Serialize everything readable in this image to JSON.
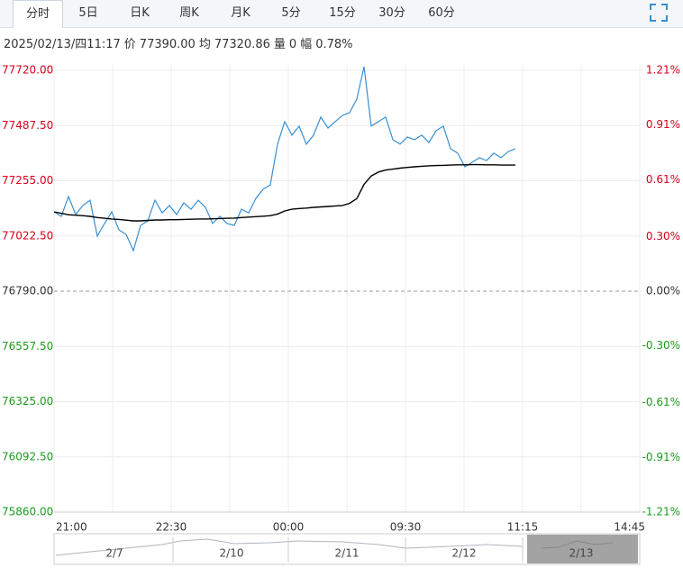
{
  "tabs": [
    "分时",
    "5日",
    "日K",
    "周K",
    "月K",
    "5分",
    "15分",
    "30分",
    "60分"
  ],
  "selected_tab": 0,
  "info": {
    "datetime": "2025/02/13/四11:17",
    "fields": [
      {
        "label": "价",
        "value": "77390.00"
      },
      {
        "label": "均",
        "value": "77320.86"
      },
      {
        "label": "量",
        "value": "0"
      },
      {
        "label": "幅",
        "value": "0.78%"
      }
    ]
  },
  "chart_data": {
    "type": "line",
    "series": [
      {
        "color": "#3a8fd1",
        "values": [
          77124,
          77105,
          77189,
          77113,
          77151,
          77173,
          77022,
          77075,
          77124,
          77048,
          77029,
          76961,
          77067,
          77086,
          77173,
          77120,
          77151,
          77113,
          77162,
          77135,
          77173,
          77143,
          77075,
          77105,
          77075,
          77067,
          77135,
          77120,
          77181,
          77219,
          77238,
          77409,
          77504,
          77447,
          77485,
          77409,
          77447,
          77523,
          77477,
          77504,
          77530,
          77542,
          77599,
          77735,
          77485,
          77504,
          77523,
          77428,
          77409,
          77439,
          77428,
          77447,
          77416,
          77466,
          77485,
          77390,
          77371,
          77314,
          77333,
          77352,
          77340,
          77371,
          77352,
          77378,
          77390
        ]
      },
      {
        "color": "#000000",
        "values": [
          77124,
          77118,
          77112,
          77110,
          77108,
          77105,
          77100,
          77097,
          77094,
          77092,
          77089,
          77086,
          77086,
          77088,
          77090,
          77090,
          77091,
          77091,
          77092,
          77093,
          77094,
          77094,
          77095,
          77096,
          77097,
          77098,
          77100,
          77102,
          77104,
          77106,
          77108,
          77115,
          77128,
          77135,
          77138,
          77140,
          77143,
          77145,
          77147,
          77149,
          77151,
          77160,
          77180,
          77240,
          77275,
          77292,
          77300,
          77304,
          77308,
          77311,
          77314,
          77316,
          77318,
          77319,
          77320,
          77321,
          77322,
          77322,
          77323,
          77323,
          77322,
          77322,
          77321,
          77321,
          77321
        ]
      }
    ],
    "ylim": [
      75860,
      77720
    ],
    "yticks": [
      {
        "value": 77720,
        "label": "77720.00"
      },
      {
        "value": 77487.5,
        "label": "77487.50"
      },
      {
        "value": 77255,
        "label": "77255.00"
      },
      {
        "value": 77022.5,
        "label": "77022.50"
      },
      {
        "value": 76790,
        "label": "76790.00"
      },
      {
        "value": 76557.5,
        "label": "76557.50"
      },
      {
        "value": 76325,
        "label": "76325.00"
      },
      {
        "value": 76092.5,
        "label": "76092.50"
      },
      {
        "value": 75860,
        "label": "75860.00"
      }
    ],
    "y2lim": [
      -1.21,
      1.21
    ],
    "y2ticks": [
      {
        "value": 1.21,
        "label": "1.21%"
      },
      {
        "value": 0.91,
        "label": "0.91%"
      },
      {
        "value": 0.61,
        "label": "0.61%"
      },
      {
        "value": 0.3,
        "label": "0.30%"
      },
      {
        "value": 0,
        "label": "0.00%"
      },
      {
        "value": -0.3,
        "label": "-0.30%"
      },
      {
        "value": -0.61,
        "label": "-0.61%"
      },
      {
        "value": -0.91,
        "label": "-0.91%"
      },
      {
        "value": -1.21,
        "label": "-1.21%"
      }
    ],
    "x_labels": [
      "21:00",
      "22:30",
      "00:00",
      "09:30",
      "11:15",
      "14:45"
    ],
    "grid": true
  },
  "navigator": {
    "labels": [
      "2/7",
      "2/10",
      "2/11",
      "2/12",
      "2/13"
    ]
  }
}
